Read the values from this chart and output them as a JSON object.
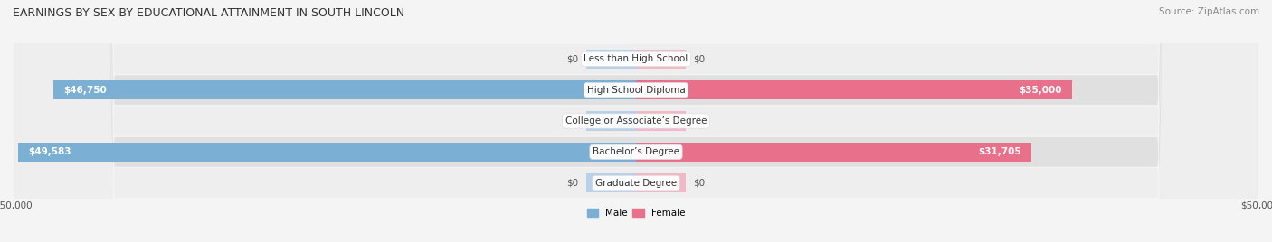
{
  "title": "EARNINGS BY SEX BY EDUCATIONAL ATTAINMENT IN SOUTH LINCOLN",
  "source": "Source: ZipAtlas.com",
  "categories": [
    "Less than High School",
    "High School Diploma",
    "College or Associate’s Degree",
    "Bachelor’s Degree",
    "Graduate Degree"
  ],
  "male_values": [
    0,
    46750,
    0,
    49583,
    0
  ],
  "female_values": [
    0,
    35000,
    0,
    31705,
    0
  ],
  "max_val": 50000,
  "male_color": "#7bafd4",
  "female_color": "#e8708a",
  "male_color_light": "#b8d0e8",
  "female_color_light": "#f0b8c8",
  "row_color_odd": "#eeeeee",
  "row_color_even": "#e0e0e0",
  "bg_color": "#f4f4f4",
  "legend_male": "Male",
  "legend_female": "Female",
  "title_fontsize": 9,
  "source_fontsize": 7.5,
  "label_fontsize": 7.5,
  "value_fontsize": 7.5,
  "category_fontsize": 7.5,
  "zero_stub": 4000
}
